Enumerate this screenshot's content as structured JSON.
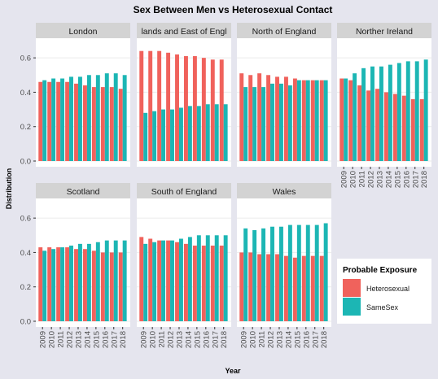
{
  "chart_data": {
    "type": "bar",
    "title": "Sex Between Men vs Heterosexual Contact",
    "xlabel": "Year",
    "ylabel": "Distribution",
    "years": [
      "2009",
      "2010",
      "2011",
      "2012",
      "2013",
      "2014",
      "2015",
      "2016",
      "2017",
      "2018"
    ],
    "y_ticks": [
      "0.0",
      "0.2",
      "0.4",
      "0.6"
    ],
    "ylim": [
      0,
      0.7
    ],
    "legend": {
      "title": "Probable Exposure",
      "position": "right",
      "items": [
        {
          "label": "Heterosexual",
          "color": "#f0625c"
        },
        {
          "label": "SameSex",
          "color": "#1cb6b4"
        }
      ]
    },
    "panels": [
      {
        "label": "London",
        "heterosexual": [
          0.46,
          0.46,
          0.46,
          0.46,
          0.45,
          0.44,
          0.43,
          0.43,
          0.43,
          0.42
        ],
        "samesex": [
          0.47,
          0.48,
          0.48,
          0.49,
          0.49,
          0.5,
          0.5,
          0.51,
          0.51,
          0.5
        ]
      },
      {
        "label": "lands and East of Engl",
        "heterosexual": [
          0.64,
          0.64,
          0.64,
          0.63,
          0.62,
          0.61,
          0.61,
          0.6,
          0.59,
          0.59
        ],
        "samesex": [
          0.28,
          0.29,
          0.3,
          0.3,
          0.31,
          0.32,
          0.32,
          0.33,
          0.33,
          0.33
        ]
      },
      {
        "label": "North of England",
        "heterosexual": [
          0.51,
          0.5,
          0.51,
          0.5,
          0.49,
          0.49,
          0.48,
          0.47,
          0.47,
          0.47
        ],
        "samesex": [
          0.43,
          0.43,
          0.43,
          0.45,
          0.45,
          0.44,
          0.47,
          0.47,
          0.47,
          0.47
        ]
      },
      {
        "label": "Norther Ireland",
        "heterosexual": [
          0.48,
          0.47,
          0.44,
          0.41,
          0.42,
          0.4,
          0.39,
          0.38,
          0.36,
          0.36
        ],
        "samesex": [
          0.48,
          0.51,
          0.54,
          0.55,
          0.55,
          0.56,
          0.57,
          0.58,
          0.58,
          0.59
        ]
      },
      {
        "label": "Scotland",
        "heterosexual": [
          0.43,
          0.43,
          0.43,
          0.43,
          0.42,
          0.42,
          0.41,
          0.4,
          0.4,
          0.4
        ],
        "samesex": [
          0.41,
          0.42,
          0.43,
          0.44,
          0.45,
          0.45,
          0.46,
          0.47,
          0.47,
          0.47
        ]
      },
      {
        "label": "South of England",
        "heterosexual": [
          0.49,
          0.48,
          0.47,
          0.47,
          0.46,
          0.45,
          0.44,
          0.44,
          0.44,
          0.44
        ],
        "samesex": [
          0.45,
          0.46,
          0.47,
          0.47,
          0.48,
          0.49,
          0.5,
          0.5,
          0.5,
          0.5
        ]
      },
      {
        "label": "Wales",
        "heterosexual": [
          0.4,
          0.4,
          0.39,
          0.39,
          0.39,
          0.38,
          0.37,
          0.38,
          0.38,
          0.38
        ],
        "samesex": [
          0.54,
          0.53,
          0.54,
          0.55,
          0.55,
          0.56,
          0.56,
          0.56,
          0.56,
          0.57
        ]
      }
    ]
  }
}
